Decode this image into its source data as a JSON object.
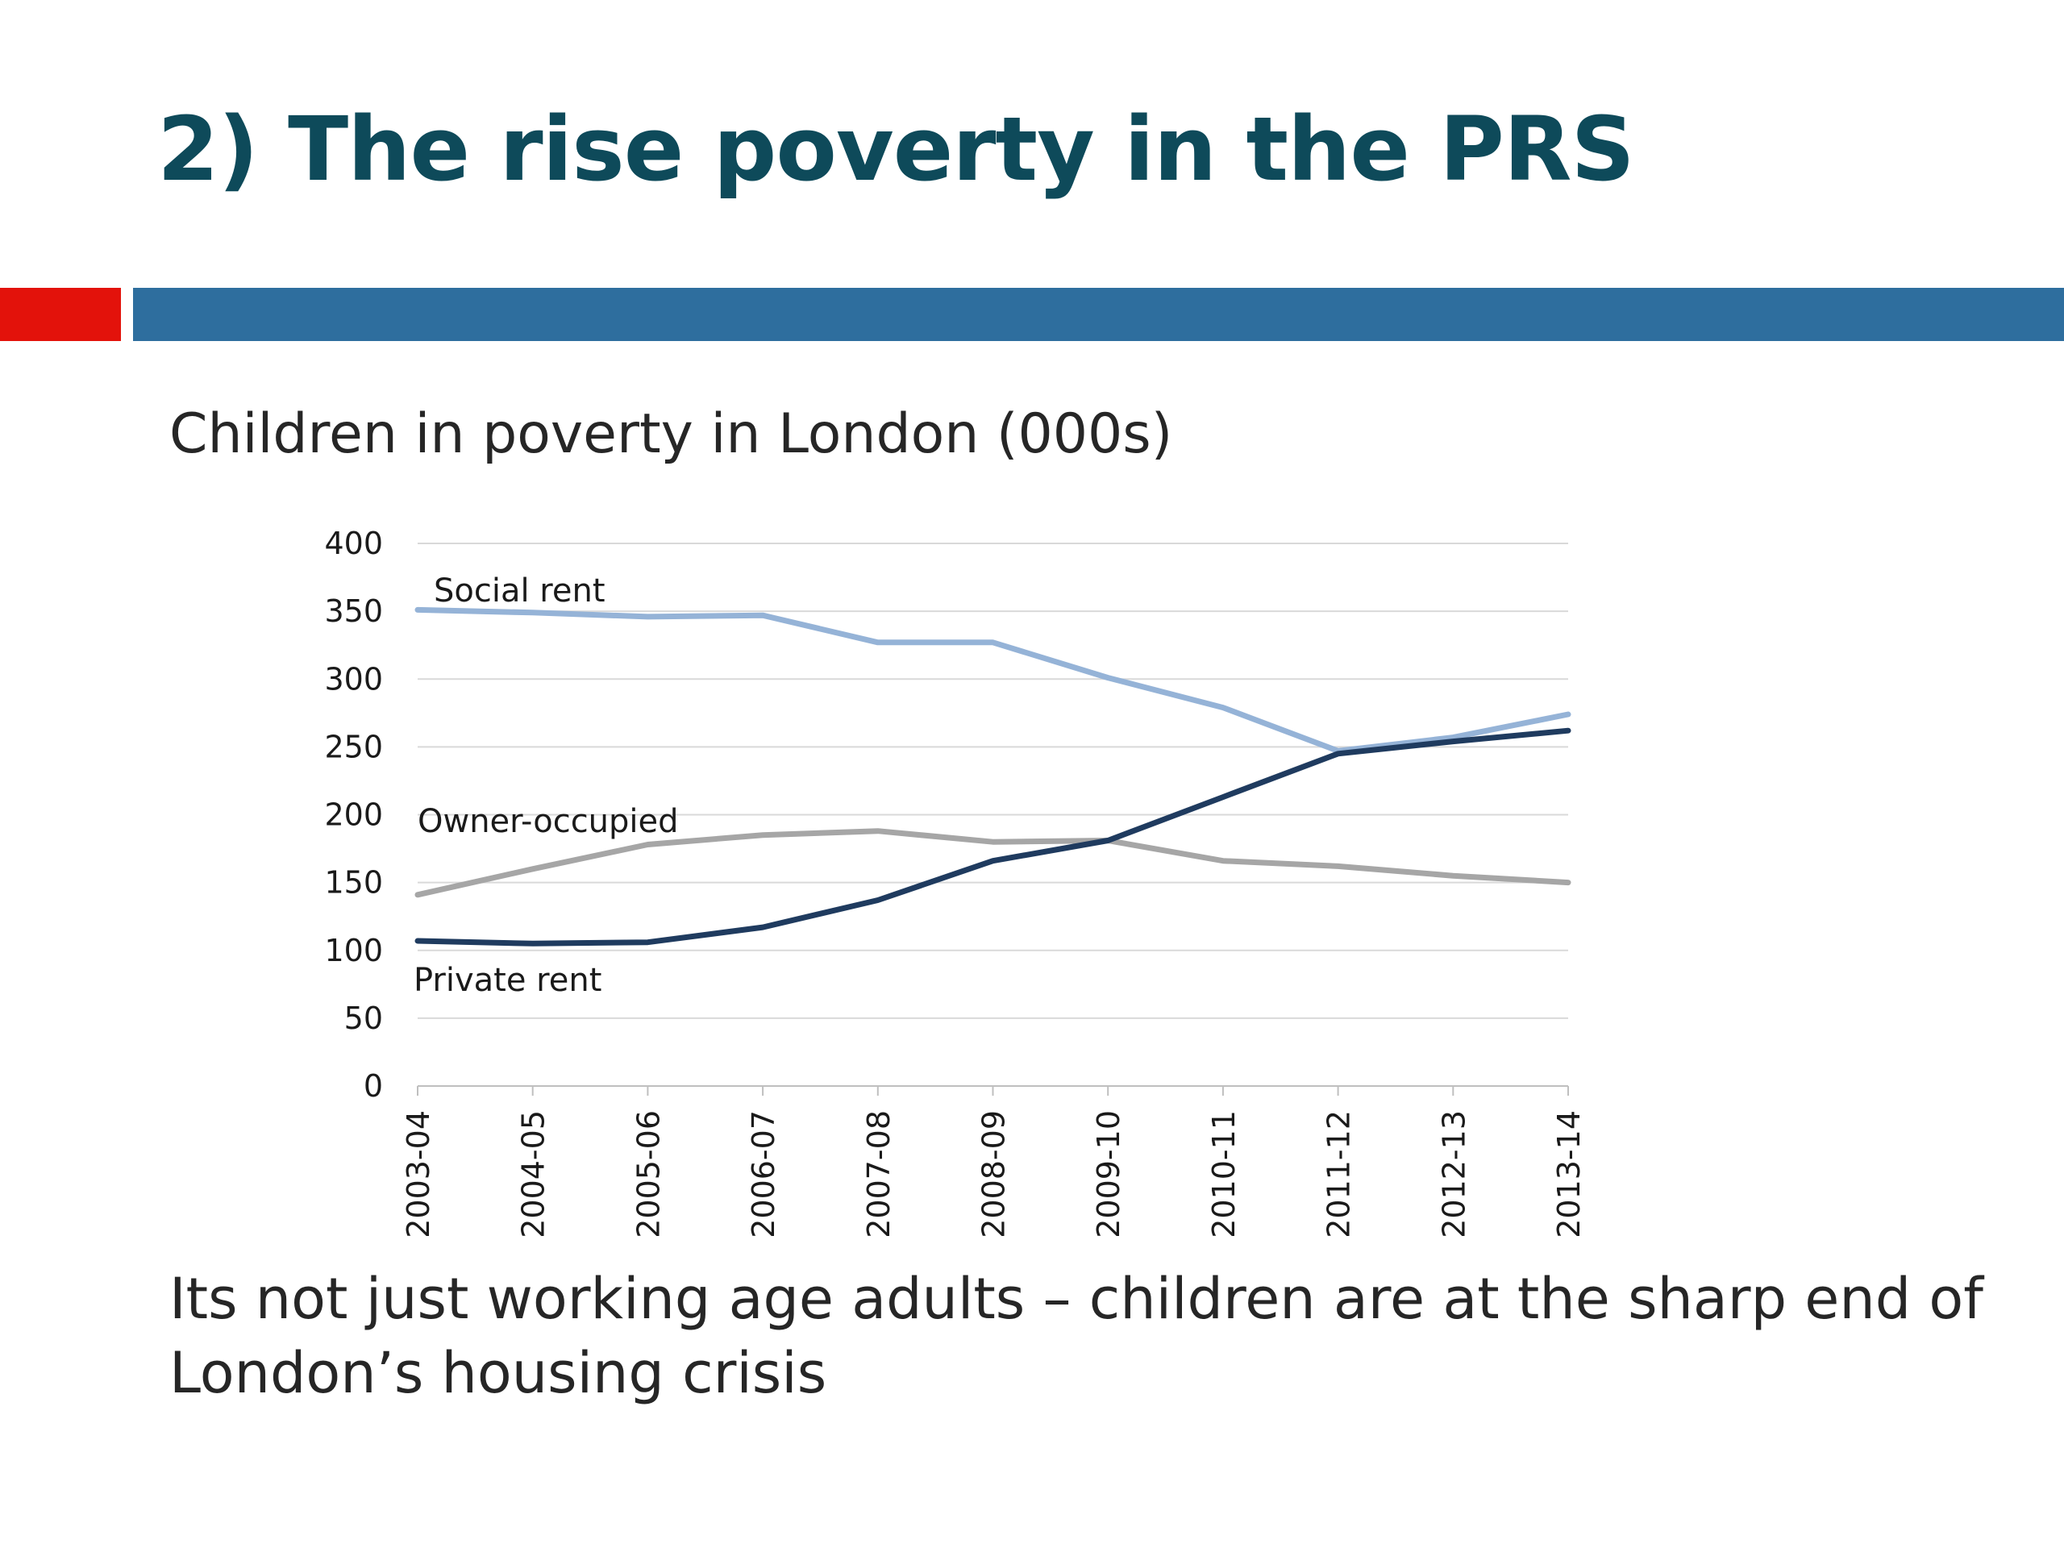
{
  "slide": {
    "title": "2) The rise poverty in the PRS",
    "chart_heading": "Children in poverty in London (000s)",
    "caption": "Its not just working age adults – children are at the sharp end of London’s housing crisis"
  },
  "colors": {
    "title": "#0e4a5a",
    "accent_red": "#e3120b",
    "accent_blue": "#2e6e9e",
    "social_rent": "#95b3d7",
    "owner_occupied": "#a6a6a6",
    "private_rent": "#1f3b5f",
    "grid": "#d9d9d9"
  },
  "chart_data": {
    "type": "line",
    "title": "Children in poverty in London (000s)",
    "categories": [
      "2003-04",
      "2004-05",
      "2005-06",
      "2006-07",
      "2007-08",
      "2008-09",
      "2009-10",
      "2010-11",
      "2011-12",
      "2012-13",
      "2013-14"
    ],
    "series": [
      {
        "name": "Social rent",
        "values": [
          351,
          349,
          346,
          347,
          327,
          327,
          301,
          279,
          247,
          257,
          274
        ]
      },
      {
        "name": "Owner-occupied",
        "values": [
          141,
          160,
          178,
          185,
          188,
          180,
          181,
          166,
          162,
          155,
          150
        ]
      },
      {
        "name": "Private rent",
        "values": [
          107,
          105,
          106,
          117,
          137,
          166,
          181,
          213,
          245,
          254,
          262
        ]
      }
    ],
    "yticks": [
      0,
      50,
      100,
      150,
      200,
      250,
      300,
      350,
      400
    ],
    "ylim": [
      0,
      400
    ],
    "grid": true,
    "legend": "inline labels"
  }
}
